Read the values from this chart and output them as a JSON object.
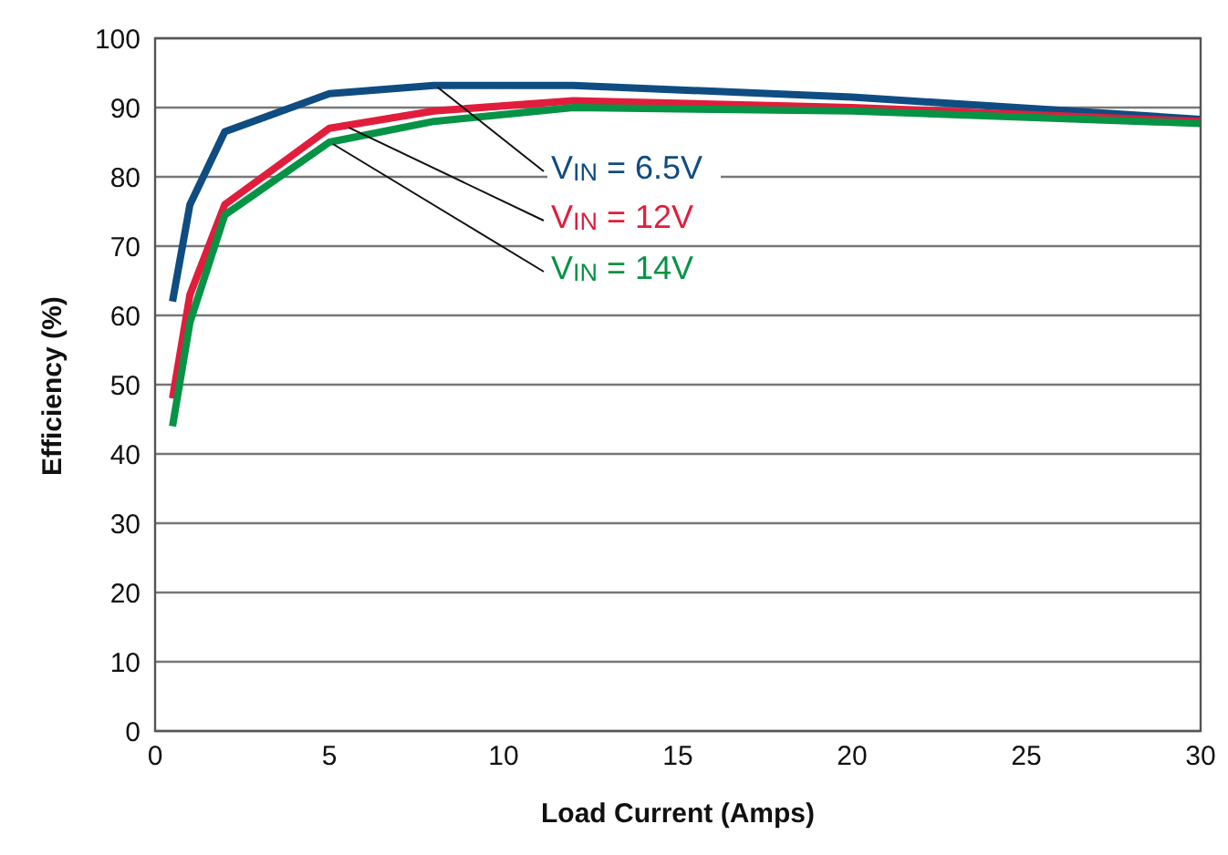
{
  "chart_data": {
    "type": "line",
    "xlabel": "Load Current (Amps)",
    "ylabel": "Efficiency (%)",
    "x": [
      0.5,
      1,
      2,
      5,
      8,
      12,
      20,
      30
    ],
    "series": [
      {
        "name": "V$_{IN}$ = 6.5V",
        "color": "#0f4c81",
        "values": [
          62,
          76,
          86.5,
          92,
          93.2,
          93.2,
          91.5,
          88.3
        ]
      },
      {
        "name": "V$_{IN}$ = 12V",
        "color": "#e21d3c",
        "values": [
          48,
          63,
          76,
          87,
          89.5,
          91,
          90,
          88
        ]
      },
      {
        "name": "V$_{IN}$ = 14V",
        "color": "#069346",
        "values": [
          44,
          59,
          74.5,
          85,
          88,
          90,
          89.5,
          87.7
        ]
      }
    ],
    "xlim": [
      0,
      30
    ],
    "xticks": [
      0,
      5,
      10,
      15,
      20,
      25,
      30
    ],
    "ylim": [
      0,
      100
    ],
    "yticks": [
      0,
      10,
      20,
      30,
      40,
      50,
      60,
      70,
      80,
      90,
      100
    ],
    "grid": "y",
    "legend": false,
    "marker": "none",
    "line_style": "solid"
  }
}
